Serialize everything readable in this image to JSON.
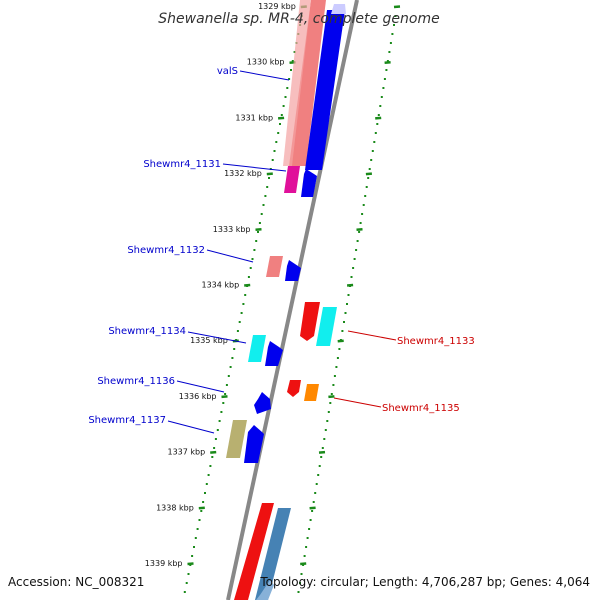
{
  "title": "Shewanella sp. MR-4, complete genome",
  "accession": "Accession: NC_008321",
  "summary": "Topology: circular; Length: 4,706,287 bp; Genes: 4,064",
  "ticks": [
    {
      "label": "1329 kbp",
      "kbp": 1329
    },
    {
      "label": "1330 kbp",
      "kbp": 1330
    },
    {
      "label": "1331 kbp",
      "kbp": 1331
    },
    {
      "label": "1332 kbp",
      "kbp": 1332
    },
    {
      "label": "1333 kbp",
      "kbp": 1333
    },
    {
      "label": "1334 kbp",
      "kbp": 1334
    },
    {
      "label": "1335 kbp",
      "kbp": 1335
    },
    {
      "label": "1336 kbp",
      "kbp": 1336
    },
    {
      "label": "1337 kbp",
      "kbp": 1337
    },
    {
      "label": "1338 kbp",
      "kbp": 1338
    },
    {
      "label": "1339 kbp",
      "kbp": 1339
    }
  ],
  "gene_labels": [
    {
      "name": "valS",
      "strand": "reverse"
    },
    {
      "name": "Shewmr4_1131",
      "strand": "reverse"
    },
    {
      "name": "Shewmr4_1132",
      "strand": "reverse"
    },
    {
      "name": "Shewmr4_1134",
      "strand": "reverse"
    },
    {
      "name": "Shewmr4_1136",
      "strand": "reverse"
    },
    {
      "name": "Shewmr4_1137",
      "strand": "reverse"
    },
    {
      "name": "Shewmr4_1133",
      "strand": "forward"
    },
    {
      "name": "Shewmr4_1135",
      "strand": "forward"
    }
  ],
  "colors": {
    "reverse_label": "#0000cc",
    "forward_label": "#cc0000",
    "backbone": "#888888",
    "tick_dots": "#1a8a1a",
    "cds": "#0000ee",
    "feature_red": "#ee1111",
    "feature_pink": "#f08080",
    "feature_magenta": "#e0109a",
    "feature_cyan": "#11eeee",
    "feature_orange": "#ff8800",
    "feature_olive": "#b8b070",
    "feature_steelblue": "#4682b4"
  }
}
